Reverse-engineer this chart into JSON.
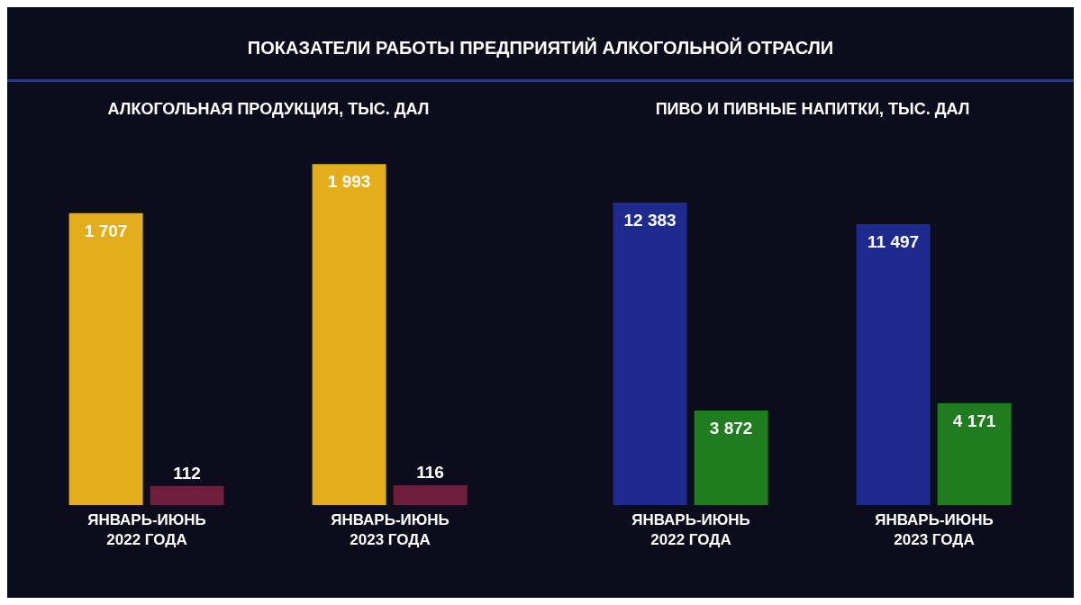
{
  "chart_data": [
    {
      "type": "bar",
      "title": "ПОКАЗАТЕЛИ РАБОТЫ ПРЕДПРИЯТИЙ АЛКОГОЛЬНОЙ ОТРАСЛИ",
      "subtitle": "АЛКОГОЛЬНАЯ ПРОДУКЦИЯ, ТЫС. ДАЛ",
      "categories": [
        "ЯНВАРЬ-ИЮНЬ 2022 ГОДА",
        "ЯНВАРЬ-ИЮНЬ 2023 ГОДА"
      ],
      "series": [
        {
          "color": "#e3ad1c",
          "values": [
            1707,
            1993
          ],
          "value_labels": [
            "1 707",
            "1 993"
          ]
        },
        {
          "color": "#6e1d3b",
          "values": [
            112,
            116
          ],
          "value_labels": [
            "112",
            "116"
          ]
        }
      ],
      "grid": false,
      "legend": false
    },
    {
      "type": "bar",
      "subtitle": "ПИВО И ПИВНЫЕ НАПИТКИ, ТЫС. ДАЛ",
      "categories": [
        "ЯНВАРЬ-ИЮНЬ 2022 ГОДА",
        "ЯНВАРЬ-ИЮНЬ 2023 ГОДА"
      ],
      "series": [
        {
          "color": "#1e2a8e",
          "values": [
            12383,
            11497
          ],
          "value_labels": [
            "12 383",
            "11 497"
          ]
        },
        {
          "color": "#1f7d1f",
          "values": [
            3872,
            4171
          ],
          "value_labels": [
            "3 872",
            "4 171"
          ]
        }
      ],
      "grid": false,
      "legend": false
    }
  ]
}
